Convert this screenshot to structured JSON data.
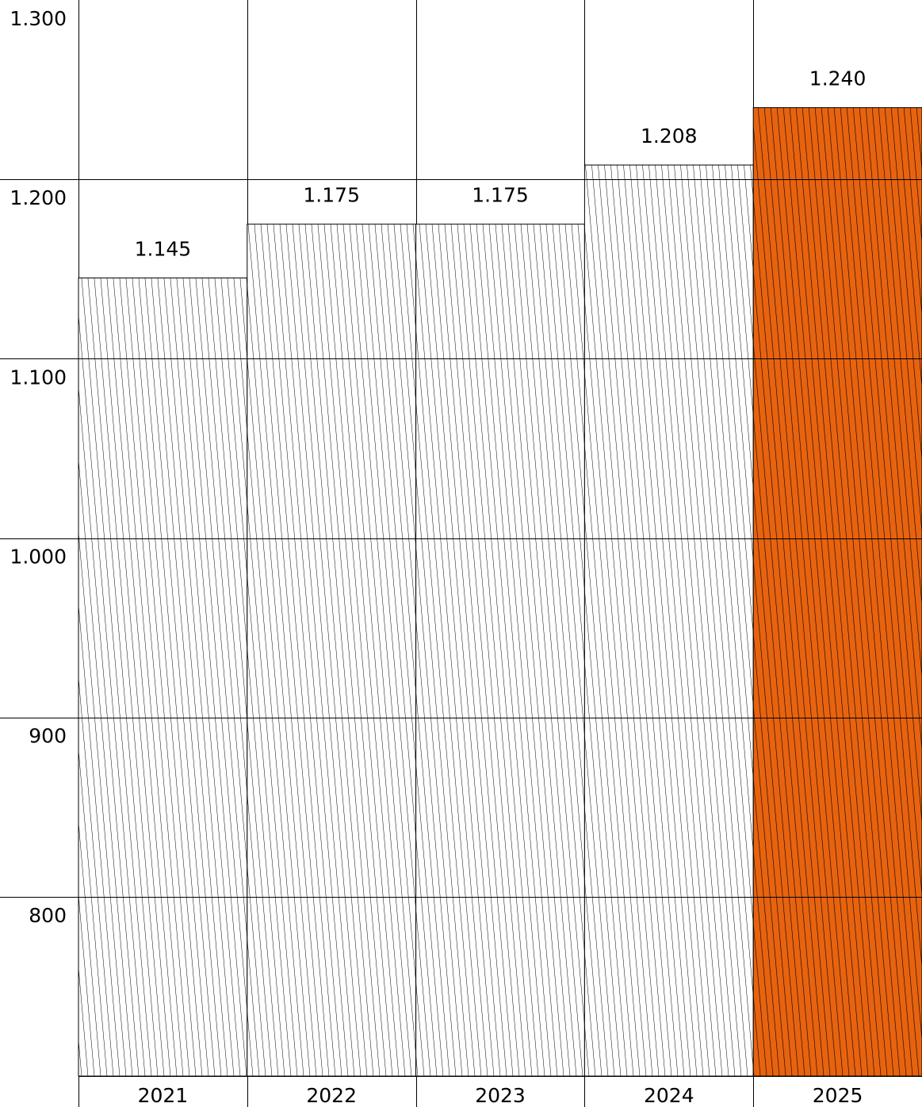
{
  "chart_data": {
    "type": "bar",
    "title": "",
    "xlabel": "",
    "ylabel": "",
    "categories": [
      "2021",
      "2022",
      "2023",
      "2024",
      "2025"
    ],
    "values": [
      1145,
      1175,
      1175,
      1208,
      1240
    ],
    "value_labels": [
      "1.145",
      "1.175",
      "1.175",
      "1.208",
      "1.240"
    ],
    "ylim": [
      700,
      1300
    ],
    "y_ticks": [
      800,
      900,
      1000,
      1100,
      1200,
      1300
    ],
    "y_tick_labels": [
      "800",
      "900",
      "1.000",
      "1.100",
      "1.200",
      "1.300"
    ],
    "grid": true,
    "bar_fill_pattern": "diagonal-hatch",
    "colors": {
      "default_bar": "#ffffff",
      "highlight_bar": "#e8630f",
      "line": "#000000"
    },
    "highlight_category": "2025"
  }
}
